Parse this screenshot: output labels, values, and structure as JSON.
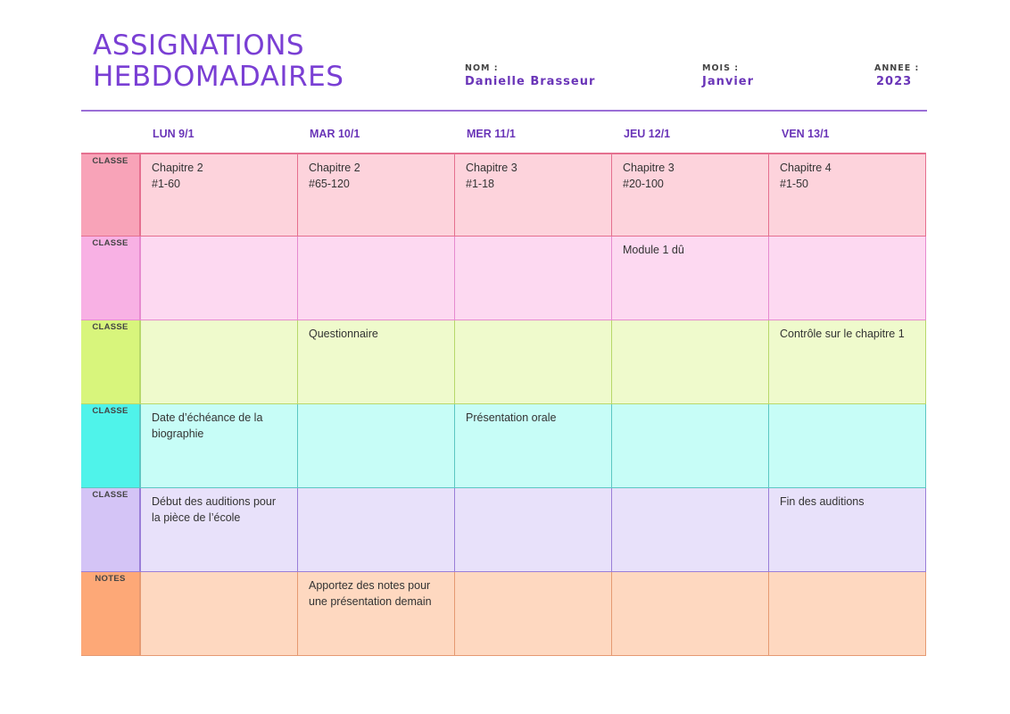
{
  "title": [
    "ASSIGNATIONS",
    "HEBDOMADAIRES"
  ],
  "meta": {
    "nom_label": "NOM :",
    "nom_value": "Danielle Brasseur",
    "mois_label": "MOIS :",
    "mois_value": "Janvier",
    "annee_label": "ANNEE :",
    "annee_value": "2023"
  },
  "days": [
    "LUN 9/1",
    "MAR 10/1",
    "MER 11/1",
    "JEU 12/1",
    "VEN 13/1"
  ],
  "colors": {
    "title": "#7a3fd4",
    "rows": [
      {
        "label_bg": "#f8a3b8",
        "cell_bg": "#fdd3dc",
        "border": "#e56f8f"
      },
      {
        "label_bg": "#f8b1e4",
        "cell_bg": "#fdd9f1",
        "border": "#e68bcf"
      },
      {
        "label_bg": "#d8f57c",
        "cell_bg": "#effacc",
        "border": "#b7d86a"
      },
      {
        "label_bg": "#4ff3ea",
        "cell_bg": "#c7fdf7",
        "border": "#5cc7c2"
      },
      {
        "label_bg": "#d4c4f6",
        "cell_bg": "#e8e1fa",
        "border": "#9a7ed8"
      },
      {
        "label_bg": "#fda877",
        "cell_bg": "#fed8c0",
        "border": "#e59a72"
      }
    ]
  },
  "rows": [
    {
      "label": "CLASSE",
      "cells": [
        "Chapitre 2\n#1-60",
        "Chapitre 2\n#65-120",
        "Chapitre 3\n#1-18",
        "Chapitre 3\n#20-100",
        "Chapitre 4\n#1-50"
      ]
    },
    {
      "label": "CLASSE",
      "cells": [
        "",
        "",
        "",
        "Module 1 dû",
        ""
      ]
    },
    {
      "label": "CLASSE",
      "cells": [
        "",
        "Questionnaire",
        "",
        "",
        "Contrôle sur le chapitre 1"
      ]
    },
    {
      "label": "CLASSE",
      "cells": [
        "Date d’échéance de la\nbiographie",
        "",
        "Présentation orale",
        "",
        ""
      ]
    },
    {
      "label": "CLASSE",
      "cells": [
        "Début des auditions pour\nla pièce de l’école",
        "",
        "",
        "",
        "Fin des auditions"
      ]
    },
    {
      "label": "NOTES",
      "cells": [
        "",
        "Apportez des notes pour\nune présentation demain",
        "",
        "",
        ""
      ]
    }
  ]
}
